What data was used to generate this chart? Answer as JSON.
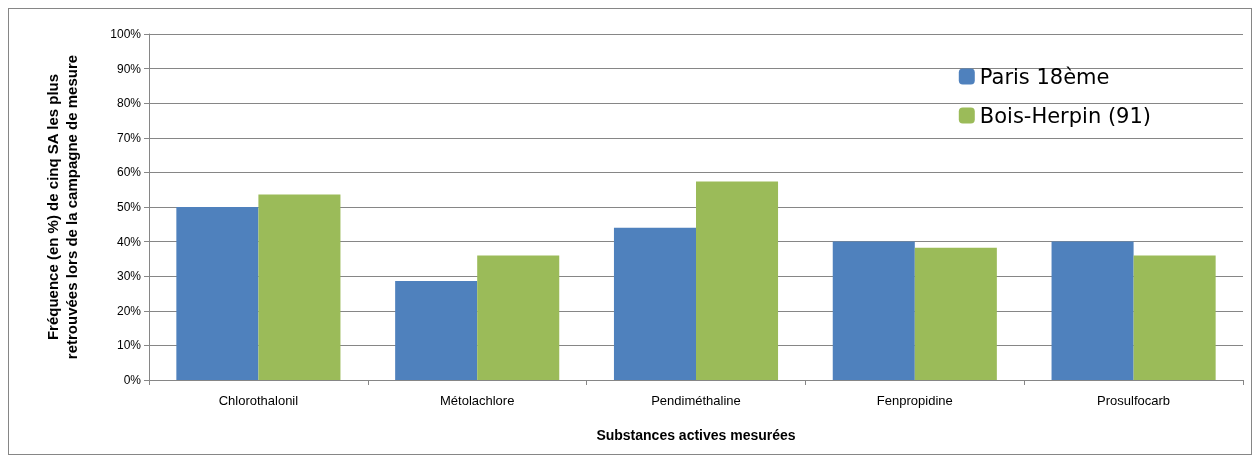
{
  "chart_data": {
    "type": "bar",
    "xlabel": "Substances actives mesurées",
    "ylabel": "Fréquence (en %) de cinq SA les plus\nretrouvées lors de la campagne de mesure",
    "categories": [
      "Chlorothalonil",
      "Métolachlore",
      "Pendiméthaline",
      "Fenpropidine",
      "Prosulfocarb"
    ],
    "series": [
      {
        "name": "Paris 18ème",
        "color": "#4f81bd",
        "values": [
          50,
          28.6,
          44,
          40,
          40
        ]
      },
      {
        "name": "Bois-Herpin (91)",
        "color": "#9bbb59",
        "values": [
          53.6,
          36,
          57.4,
          38.2,
          36
        ]
      }
    ],
    "ylim": [
      0,
      100
    ],
    "yticks": [
      {
        "value": 0,
        "label": "0%"
      },
      {
        "value": 10,
        "label": "10%"
      },
      {
        "value": 20,
        "label": "20%"
      },
      {
        "value": 30,
        "label": "30%"
      },
      {
        "value": 40,
        "label": "40%"
      },
      {
        "value": 50,
        "label": "50%"
      },
      {
        "value": 60,
        "label": "60%"
      },
      {
        "value": 70,
        "label": "70%"
      },
      {
        "value": 80,
        "label": "80%"
      },
      {
        "value": 90,
        "label": "90%"
      },
      {
        "value": 100,
        "label": "100%"
      }
    ],
    "grid": "y",
    "legend": "top right"
  }
}
